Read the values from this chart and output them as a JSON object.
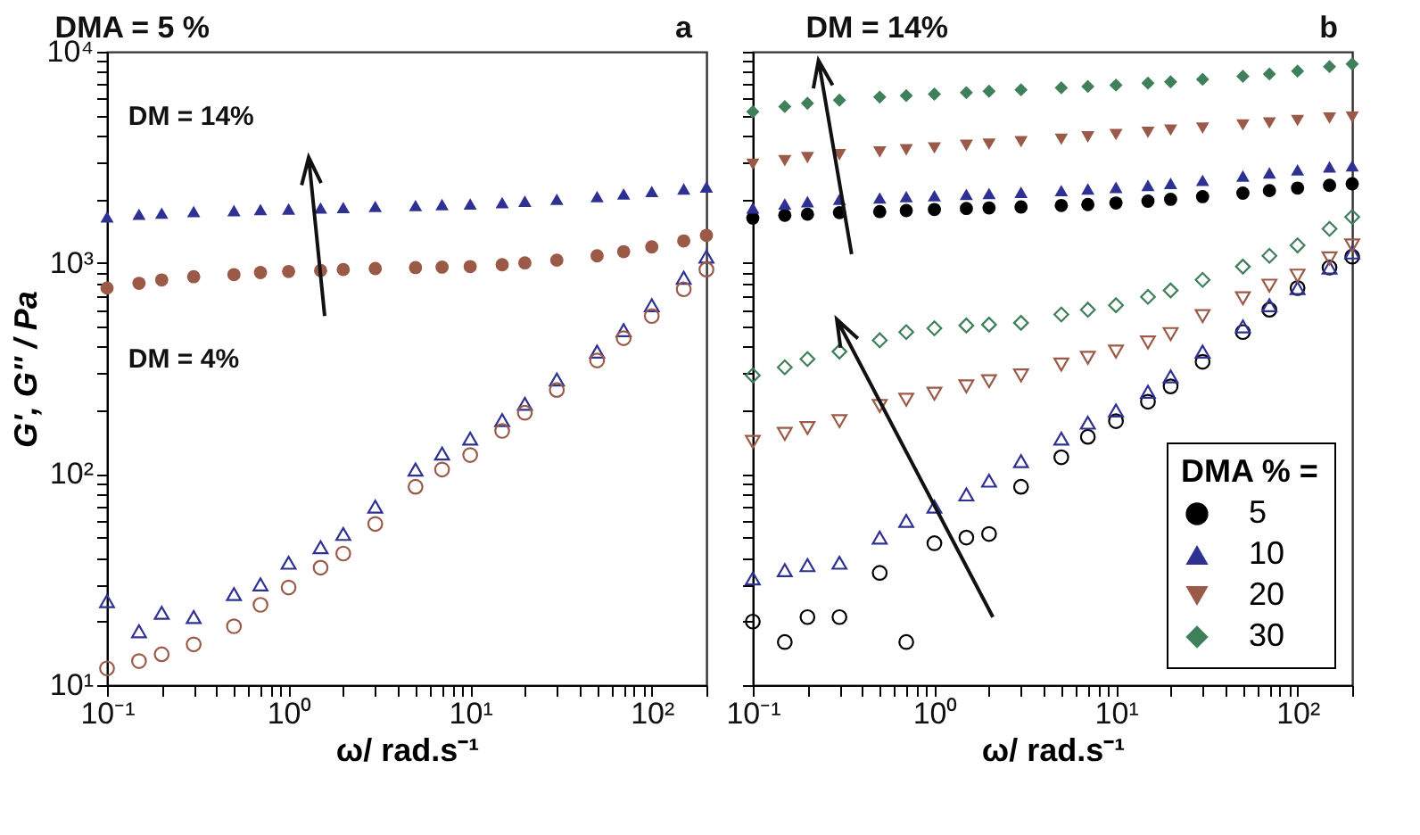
{
  "chart_data": [
    {
      "type": "scatter",
      "title": "DMA  =  5 %",
      "xlabel": "ω/ rad.s⁻¹",
      "ylabel": "G', G'' / Pa",
      "log": "xy",
      "legend": false,
      "annotations": [
        "a"
      ],
      "x": [
        0.1,
        0.15,
        0.2,
        0.3,
        0.5,
        0.7,
        1,
        1.5,
        2,
        3,
        5,
        7,
        10,
        15,
        20,
        30,
        50,
        70,
        100,
        150,
        200
      ],
      "xlim": [
        0.1,
        200
      ],
      "ylim": [
        10,
        10000
      ],
      "xticks": [
        {
          "value": 0.1,
          "label": "10⁻¹"
        },
        {
          "value": 0.2,
          "label": null
        },
        {
          "value": 0.3,
          "label": null
        },
        {
          "value": 0.4,
          "label": null
        },
        {
          "value": 0.5,
          "label": null
        },
        {
          "value": 0.6,
          "label": null
        },
        {
          "value": 0.7,
          "label": null
        },
        {
          "value": 0.8,
          "label": null
        },
        {
          "value": 0.9,
          "label": null
        },
        {
          "value": 1,
          "label": "10⁰"
        },
        {
          "value": 2,
          "label": null
        },
        {
          "value": 3,
          "label": null
        },
        {
          "value": 4,
          "label": null
        },
        {
          "value": 5,
          "label": null
        },
        {
          "value": 6,
          "label": null
        },
        {
          "value": 7,
          "label": null
        },
        {
          "value": 8,
          "label": null
        },
        {
          "value": 9,
          "label": null
        },
        {
          "value": 10,
          "label": "10¹"
        },
        {
          "value": 20,
          "label": null
        },
        {
          "value": 30,
          "label": null
        },
        {
          "value": 40,
          "label": null
        },
        {
          "value": 50,
          "label": null
        },
        {
          "value": 60,
          "label": null
        },
        {
          "value": 70,
          "label": null
        },
        {
          "value": 80,
          "label": null
        },
        {
          "value": 90,
          "label": null
        },
        {
          "value": 100,
          "label": "10²"
        },
        {
          "value": 200,
          "label": null
        }
      ],
      "yticks": [
        {
          "value": 10,
          "label": "10¹"
        },
        {
          "value": 20,
          "label": null
        },
        {
          "value": 30,
          "label": null
        },
        {
          "value": 40,
          "label": null
        },
        {
          "value": 50,
          "label": null
        },
        {
          "value": 60,
          "label": null
        },
        {
          "value": 70,
          "label": null
        },
        {
          "value": 80,
          "label": null
        },
        {
          "value": 90,
          "label": null
        },
        {
          "value": 100,
          "label": "10²"
        },
        {
          "value": 200,
          "label": null
        },
        {
          "value": 300,
          "label": null
        },
        {
          "value": 400,
          "label": null
        },
        {
          "value": 500,
          "label": null
        },
        {
          "value": 600,
          "label": null
        },
        {
          "value": 700,
          "label": null
        },
        {
          "value": 800,
          "label": null
        },
        {
          "value": 900,
          "label": null
        },
        {
          "value": 1000,
          "label": "10³"
        },
        {
          "value": 2000,
          "label": null
        },
        {
          "value": 3000,
          "label": null
        },
        {
          "value": 4000,
          "label": null
        },
        {
          "value": 5000,
          "label": null
        },
        {
          "value": 6000,
          "label": null
        },
        {
          "value": 7000,
          "label": null
        },
        {
          "value": 8000,
          "label": null
        },
        {
          "value": 9000,
          "label": null
        },
        {
          "value": 10000,
          "label": "10⁴"
        }
      ],
      "series": [
        {
          "name": "DM = 14%",
          "color": "#2e3192",
          "marker": "triangle",
          "values": [
            1650,
            1700,
            1720,
            1750,
            1770,
            1790,
            1800,
            1820,
            1830,
            1850,
            1870,
            1890,
            1900,
            1930,
            1960,
            2000,
            2060,
            2120,
            2180,
            2240,
            2290
          ]
        },
        {
          "name": "DM =  4%",
          "color": "#9b5a48",
          "marker": "circle",
          "values": [
            760,
            800,
            830,
            860,
            880,
            900,
            910,
            920,
            930,
            940,
            950,
            955,
            960,
            980,
            1000,
            1030,
            1080,
            1130,
            1190,
            1270,
            1350
          ]
        },
        {
          "color": "#2e3192",
          "marker": "triangle",
          "values": [
            25,
            18,
            22,
            21,
            27,
            30,
            38,
            45,
            52,
            70,
            105,
            125,
            147,
            180,
            215,
            280,
            380,
            480,
            630,
            850,
            1070
          ]
        },
        {
          "color": "#9b5a48",
          "marker": "circle",
          "values": [
            12,
            13,
            14,
            15.6,
            19,
            24,
            29,
            36,
            42,
            58,
            87,
            105,
            123,
            160,
            195,
            250,
            345,
            440,
            560,
            750,
            930
          ]
        }
      ]
    },
    {
      "type": "scatter",
      "title": "DM = 14%",
      "xlabel": "ω/ rad.s⁻¹",
      "log": "xy",
      "legend": "bottom right",
      "legend_title": "DMA % =",
      "tick_labels": "x",
      "annotations": [
        "b"
      ],
      "x": [
        0.1,
        0.15,
        0.2,
        0.3,
        0.5,
        0.7,
        1,
        1.5,
        2,
        3,
        5,
        7,
        10,
        15,
        20,
        30,
        50,
        70,
        100,
        150,
        200
      ],
      "xlim": [
        0.1,
        200
      ],
      "ylim": [
        10,
        10000
      ],
      "yticks": [
        {
          "value": 10,
          "label": null
        },
        {
          "value": 20,
          "label": null
        },
        {
          "value": 30,
          "label": null
        },
        {
          "value": 40,
          "label": null
        },
        {
          "value": 50,
          "label": null
        },
        {
          "value": 60,
          "label": null
        },
        {
          "value": 70,
          "label": null
        },
        {
          "value": 80,
          "label": null
        },
        {
          "value": 90,
          "label": null
        },
        {
          "value": 100,
          "label": null
        },
        {
          "value": 200,
          "label": null
        },
        {
          "value": 300,
          "label": null
        },
        {
          "value": 400,
          "label": null
        },
        {
          "value": 500,
          "label": null
        },
        {
          "value": 600,
          "label": null
        },
        {
          "value": 700,
          "label": null
        },
        {
          "value": 800,
          "label": null
        },
        {
          "value": 900,
          "label": null
        },
        {
          "value": 1000,
          "label": null
        },
        {
          "value": 2000,
          "label": null
        },
        {
          "value": 3000,
          "label": null
        },
        {
          "value": 4000,
          "label": null
        },
        {
          "value": 5000,
          "label": null
        },
        {
          "value": 6000,
          "label": null
        },
        {
          "value": 7000,
          "label": null
        },
        {
          "value": 8000,
          "label": null
        },
        {
          "value": 9000,
          "label": null
        },
        {
          "value": 10000,
          "label": null
        }
      ],
      "xticks": [
        {
          "value": 0.1,
          "label": "10⁻¹"
        },
        {
          "value": 0.2,
          "label": null
        },
        {
          "value": 0.3,
          "label": null
        },
        {
          "value": 0.4,
          "label": null
        },
        {
          "value": 0.5,
          "label": null
        },
        {
          "value": 0.6,
          "label": null
        },
        {
          "value": 0.7,
          "label": null
        },
        {
          "value": 0.8,
          "label": null
        },
        {
          "value": 0.9,
          "label": null
        },
        {
          "value": 1,
          "label": "10⁰"
        },
        {
          "value": 2,
          "label": null
        },
        {
          "value": 3,
          "label": null
        },
        {
          "value": 4,
          "label": null
        },
        {
          "value": 5,
          "label": null
        },
        {
          "value": 6,
          "label": null
        },
        {
          "value": 7,
          "label": null
        },
        {
          "value": 8,
          "label": null
        },
        {
          "value": 9,
          "label": null
        },
        {
          "value": 10,
          "label": "10¹"
        },
        {
          "value": 20,
          "label": null
        },
        {
          "value": 30,
          "label": null
        },
        {
          "value": 40,
          "label": null
        },
        {
          "value": 50,
          "label": null
        },
        {
          "value": 60,
          "label": null
        },
        {
          "value": 70,
          "label": null
        },
        {
          "value": 80,
          "label": null
        },
        {
          "value": 90,
          "label": null
        },
        {
          "value": 100,
          "label": "10²"
        },
        {
          "value": 200,
          "label": null
        }
      ],
      "series": [
        {
          "name": "5",
          "color": "#000000",
          "marker": "circle",
          "values": [
            1630,
            1680,
            1700,
            1730,
            1750,
            1770,
            1790,
            1810,
            1820,
            1840,
            1870,
            1890,
            1920,
            1960,
            2000,
            2060,
            2140,
            2200,
            2260,
            2330,
            2370
          ]
        },
        {
          "name": "10",
          "color": "#2e3192",
          "marker": "triangle",
          "values": [
            1820,
            1900,
            1950,
            2000,
            2030,
            2060,
            2080,
            2110,
            2130,
            2160,
            2200,
            2240,
            2280,
            2330,
            2380,
            2460,
            2580,
            2670,
            2760,
            2850,
            2880
          ]
        },
        {
          "name": "20",
          "color": "#9b5a48",
          "marker": "triangle-down",
          "values": [
            2930,
            3050,
            3150,
            3250,
            3350,
            3430,
            3500,
            3600,
            3650,
            3750,
            3850,
            3950,
            4050,
            4150,
            4250,
            4350,
            4500,
            4600,
            4720,
            4850,
            4900
          ]
        },
        {
          "name": "30",
          "color": "#3f7f5a",
          "marker": "diamond",
          "values": [
            5200,
            5500,
            5700,
            5900,
            6100,
            6200,
            6300,
            6400,
            6500,
            6600,
            6750,
            6850,
            6950,
            7100,
            7200,
            7400,
            7650,
            7850,
            8100,
            8500,
            8750
          ]
        },
        {
          "color": "#000000",
          "marker": "circle",
          "values": [
            20,
            16,
            21,
            21,
            34,
            16,
            47,
            50,
            52,
            87,
            120,
            150,
            178,
            220,
            260,
            340,
            470,
            600,
            760,
            950,
            1070
          ]
        },
        {
          "color": "#2e3192",
          "marker": "triangle",
          "values": [
            32,
            35,
            37,
            38,
            50,
            60,
            70,
            80,
            93,
            115,
            147,
            175,
            200,
            245,
            290,
            380,
            500,
            630,
            760,
            950,
            1120
          ]
        },
        {
          "color": "#9b5a48",
          "marker": "triangle-down",
          "values": [
            142,
            155,
            165,
            178,
            210,
            225,
            240,
            260,
            275,
            293,
            330,
            355,
            380,
            420,
            460,
            560,
            680,
            780,
            870,
            1050,
            1210
          ]
        },
        {
          "color": "#3f7f5a",
          "marker": "diamond",
          "values": [
            293,
            320,
            350,
            380,
            430,
            470,
            490,
            505,
            510,
            520,
            570,
            600,
            630,
            690,
            740,
            830,
            960,
            1080,
            1210,
            1450,
            1650
          ]
        }
      ]
    }
  ]
}
